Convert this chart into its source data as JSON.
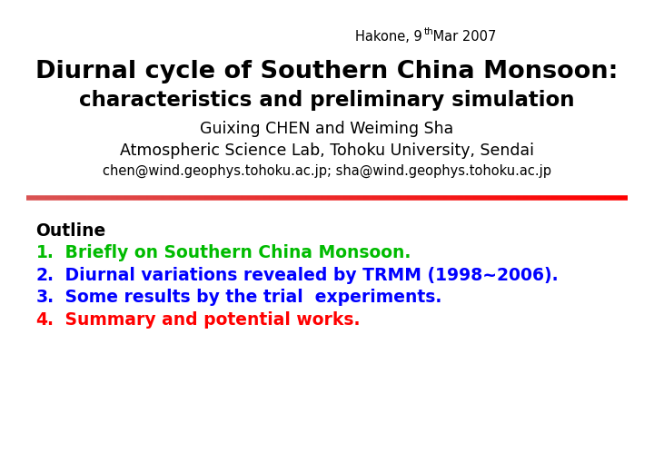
{
  "bg_color": "#ffffff",
  "date_text": "Hakone, 9",
  "date_super": "th",
  "date_rest": " Mar 2007",
  "title_line1": "Diurnal cycle of Southern China Monsoon:",
  "title_line2": "characteristics and preliminary simulation",
  "author": "Guixing CHEN and Weiming Sha",
  "affiliation": "Atmospheric Science Lab, Tohoku University, Sendai",
  "email": "chen@wind.geophys.tohoku.ac.jp; sha@wind.geophys.tohoku.ac.jp",
  "outline_label": "Outline",
  "items": [
    {
      "num": "1.",
      "text": " Briefly on Southern China Monsoon.",
      "color": "#00bb00"
    },
    {
      "num": "2.",
      "text": " Diurnal variations revealed by TRMM (1998~2006).",
      "color": "#0000ff"
    },
    {
      "num": "3.",
      "text": " Some results by the trial  experiments.",
      "color": "#0000ff"
    },
    {
      "num": "4.",
      "text": " Summary and potential works.",
      "color": "#ff0000"
    }
  ]
}
